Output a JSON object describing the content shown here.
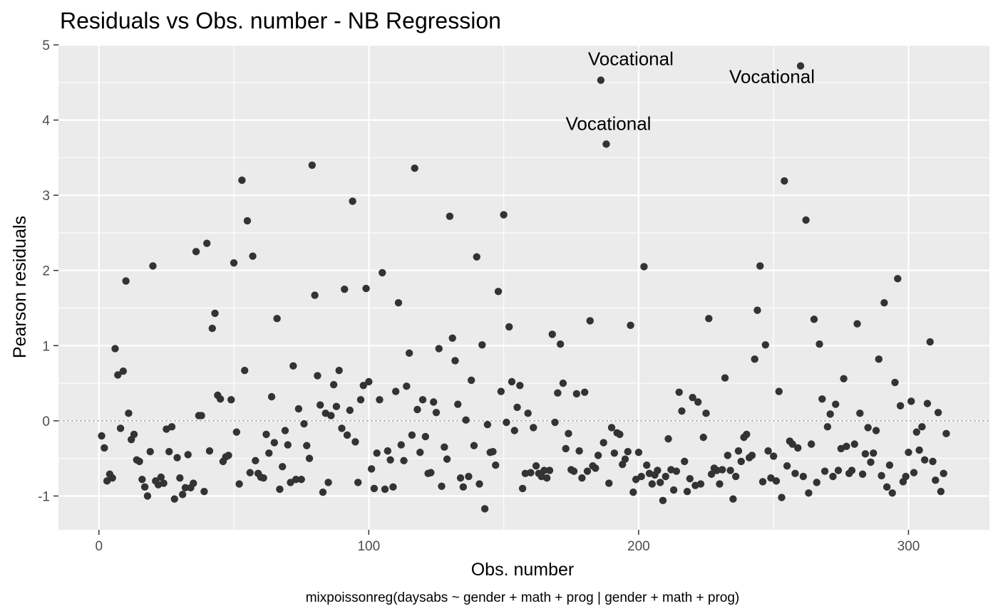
{
  "chart_data": {
    "type": "scatter",
    "title": "Residuals vs Obs. number - NB Regression",
    "xlabel": "Obs. number",
    "ylabel": "Pearson residuals",
    "caption": "mixpoissonreg(daysabs ~ gender + math + prog | gender + math + prog)",
    "xlim": [
      -15,
      330
    ],
    "ylim": [
      -1.45,
      5
    ],
    "x_ticks": [
      0,
      100,
      200,
      300
    ],
    "y_ticks": [
      -1,
      0,
      1,
      2,
      3,
      4,
      5
    ],
    "x_tick_labels": [
      "0",
      "100",
      "200",
      "300"
    ],
    "y_tick_labels": [
      "-1",
      "0",
      "1",
      "2",
      "3",
      "4",
      "5"
    ],
    "grid": true,
    "reference_line": 0,
    "colors": {
      "panel": "#EBEBEB",
      "grid": "#FFFFFF",
      "point": "#333333",
      "text": "#000000",
      "axis_text": "#4D4D4D"
    },
    "annotations": [
      {
        "x": 186,
        "y": 4.53,
        "label": "Vocational"
      },
      {
        "x": 260,
        "y": 4.72,
        "label": "Vocational"
      },
      {
        "x": 188,
        "y": 3.68,
        "label": "Vocational"
      }
    ],
    "points": [
      [
        1,
        -0.2
      ],
      [
        2,
        -0.36
      ],
      [
        3,
        -0.8
      ],
      [
        4,
        -0.71
      ],
      [
        5,
        -0.76
      ],
      [
        6,
        0.96
      ],
      [
        7,
        0.61
      ],
      [
        8,
        -0.1
      ],
      [
        9,
        0.66
      ],
      [
        10,
        1.86
      ],
      [
        11,
        0.1
      ],
      [
        12,
        -0.25
      ],
      [
        13,
        -0.18
      ],
      [
        14,
        -0.52
      ],
      [
        15,
        -0.54
      ],
      [
        16,
        -0.78
      ],
      [
        17,
        -0.88
      ],
      [
        18,
        -1.0
      ],
      [
        19,
        -0.41
      ],
      [
        20,
        2.06
      ],
      [
        21,
        -0.8
      ],
      [
        22,
        -0.85
      ],
      [
        23,
        -0.75
      ],
      [
        24,
        -0.83
      ],
      [
        25,
        -0.11
      ],
      [
        26,
        -0.41
      ],
      [
        27,
        -0.08
      ],
      [
        28,
        -1.04
      ],
      [
        29,
        -0.49
      ],
      [
        30,
        -0.76
      ],
      [
        31,
        -0.98
      ],
      [
        32,
        -0.89
      ],
      [
        33,
        -0.45
      ],
      [
        34,
        -0.89
      ],
      [
        35,
        -0.83
      ],
      [
        36,
        2.25
      ],
      [
        37,
        0.07
      ],
      [
        38,
        0.07
      ],
      [
        39,
        -0.94
      ],
      [
        40,
        2.36
      ],
      [
        41,
        -0.4
      ],
      [
        42,
        1.23
      ],
      [
        43,
        1.43
      ],
      [
        44,
        0.34
      ],
      [
        45,
        0.29
      ],
      [
        46,
        -0.54
      ],
      [
        47,
        -0.48
      ],
      [
        48,
        -0.46
      ],
      [
        49,
        0.28
      ],
      [
        50,
        2.1
      ],
      [
        51,
        -0.15
      ],
      [
        52,
        -0.84
      ],
      [
        53,
        3.2
      ],
      [
        54,
        0.67
      ],
      [
        55,
        2.66
      ],
      [
        56,
        -0.69
      ],
      [
        57,
        2.19
      ],
      [
        58,
        -0.53
      ],
      [
        59,
        -0.7
      ],
      [
        60,
        -0.75
      ],
      [
        61,
        -0.76
      ],
      [
        62,
        -0.18
      ],
      [
        63,
        -0.43
      ],
      [
        64,
        0.32
      ],
      [
        65,
        -0.29
      ],
      [
        66,
        1.36
      ],
      [
        67,
        -0.91
      ],
      [
        68,
        -0.61
      ],
      [
        69,
        -0.13
      ],
      [
        70,
        -0.32
      ],
      [
        71,
        -0.82
      ],
      [
        72,
        0.73
      ],
      [
        73,
        -0.78
      ],
      [
        74,
        0.16
      ],
      [
        75,
        -0.78
      ],
      [
        76,
        -0.04
      ],
      [
        77,
        -0.33
      ],
      [
        78,
        -0.5
      ],
      [
        79,
        3.4
      ],
      [
        80,
        1.67
      ],
      [
        81,
        0.6
      ],
      [
        82,
        0.21
      ],
      [
        83,
        -0.95
      ],
      [
        84,
        0.1
      ],
      [
        85,
        -0.82
      ],
      [
        86,
        0.07
      ],
      [
        87,
        0.48
      ],
      [
        88,
        0.19
      ],
      [
        89,
        0.67
      ],
      [
        90,
        -0.1
      ],
      [
        91,
        1.75
      ],
      [
        92,
        -0.19
      ],
      [
        93,
        0.14
      ],
      [
        94,
        2.92
      ],
      [
        95,
        -0.28
      ],
      [
        96,
        -0.82
      ],
      [
        97,
        0.28
      ],
      [
        98,
        0.47
      ],
      [
        99,
        1.76
      ],
      [
        100,
        0.52
      ],
      [
        101,
        -0.64
      ],
      [
        102,
        -0.9
      ],
      [
        103,
        -0.43
      ],
      [
        104,
        0.28
      ],
      [
        105,
        1.97
      ],
      [
        106,
        -0.91
      ],
      [
        107,
        -0.4
      ],
      [
        108,
        -0.52
      ],
      [
        109,
        -0.88
      ],
      [
        110,
        0.39
      ],
      [
        111,
        1.57
      ],
      [
        112,
        -0.32
      ],
      [
        113,
        -0.53
      ],
      [
        114,
        0.46
      ],
      [
        115,
        0.9
      ],
      [
        116,
        -0.19
      ],
      [
        117,
        3.36
      ],
      [
        118,
        0.15
      ],
      [
        119,
        -0.42
      ],
      [
        120,
        0.28
      ],
      [
        121,
        -0.21
      ],
      [
        122,
        -0.7
      ],
      [
        123,
        -0.69
      ],
      [
        124,
        0.25
      ],
      [
        125,
        0.11
      ],
      [
        126,
        0.96
      ],
      [
        127,
        -0.87
      ],
      [
        128,
        -0.35
      ],
      [
        129,
        -0.51
      ],
      [
        130,
        2.72
      ],
      [
        131,
        1.1
      ],
      [
        132,
        0.8
      ],
      [
        133,
        0.22
      ],
      [
        134,
        -0.76
      ],
      [
        135,
        -0.88
      ],
      [
        136,
        0.01
      ],
      [
        137,
        -0.74
      ],
      [
        138,
        0.54
      ],
      [
        139,
        -0.33
      ],
      [
        140,
        2.18
      ],
      [
        141,
        -0.84
      ],
      [
        142,
        1.01
      ],
      [
        143,
        -1.17
      ],
      [
        144,
        -0.05
      ],
      [
        145,
        -0.42
      ],
      [
        146,
        -0.41
      ],
      [
        147,
        -0.59
      ],
      [
        148,
        1.72
      ],
      [
        149,
        0.39
      ],
      [
        150,
        2.74
      ],
      [
        151,
        -0.02
      ],
      [
        152,
        1.25
      ],
      [
        153,
        0.52
      ],
      [
        154,
        -0.13
      ],
      [
        155,
        0.18
      ],
      [
        156,
        0.47
      ],
      [
        157,
        -0.9
      ],
      [
        158,
        -0.7
      ],
      [
        159,
        0.1
      ],
      [
        160,
        -0.69
      ],
      [
        161,
        -0.09
      ],
      [
        162,
        -0.6
      ],
      [
        163,
        -0.7
      ],
      [
        164,
        -0.74
      ],
      [
        165,
        -0.66
      ],
      [
        166,
        -0.76
      ],
      [
        167,
        -0.66
      ],
      [
        168,
        1.15
      ],
      [
        169,
        -0.02
      ],
      [
        170,
        0.37
      ],
      [
        171,
        1.02
      ],
      [
        172,
        0.5
      ],
      [
        173,
        -0.37
      ],
      [
        174,
        -0.17
      ],
      [
        175,
        -0.65
      ],
      [
        176,
        -0.67
      ],
      [
        177,
        0.36
      ],
      [
        178,
        -0.4
      ],
      [
        179,
        -0.76
      ],
      [
        180,
        0.38
      ],
      [
        181,
        -0.67
      ],
      [
        182,
        1.33
      ],
      [
        183,
        -0.6
      ],
      [
        184,
        -0.63
      ],
      [
        185,
        -0.46
      ],
      [
        186,
        4.53
      ],
      [
        187,
        -0.29
      ],
      [
        188,
        3.68
      ],
      [
        189,
        -0.83
      ],
      [
        190,
        -0.09
      ],
      [
        191,
        -0.43
      ],
      [
        192,
        -0.16
      ],
      [
        193,
        -0.18
      ],
      [
        194,
        -0.58
      ],
      [
        195,
        -0.51
      ],
      [
        196,
        -0.41
      ],
      [
        197,
        1.27
      ],
      [
        198,
        -0.95
      ],
      [
        199,
        -0.78
      ],
      [
        200,
        -0.42
      ],
      [
        201,
        -0.74
      ],
      [
        202,
        2.05
      ],
      [
        203,
        -0.59
      ],
      [
        204,
        -0.7
      ],
      [
        205,
        -0.84
      ],
      [
        206,
        -0.72
      ],
      [
        207,
        -0.66
      ],
      [
        208,
        -0.82
      ],
      [
        209,
        -1.06
      ],
      [
        210,
        -0.74
      ],
      [
        211,
        -0.24
      ],
      [
        212,
        -0.65
      ],
      [
        213,
        -0.92
      ],
      [
        214,
        -0.67
      ],
      [
        215,
        0.38
      ],
      [
        216,
        0.13
      ],
      [
        217,
        -0.54
      ],
      [
        218,
        -0.94
      ],
      [
        219,
        -0.77
      ],
      [
        220,
        0.31
      ],
      [
        221,
        -0.86
      ],
      [
        222,
        0.25
      ],
      [
        223,
        -0.84
      ],
      [
        224,
        -0.22
      ],
      [
        225,
        0.1
      ],
      [
        226,
        1.36
      ],
      [
        227,
        -0.71
      ],
      [
        228,
        -0.63
      ],
      [
        229,
        -0.66
      ],
      [
        230,
        -0.84
      ],
      [
        231,
        -0.65
      ],
      [
        232,
        0.57
      ],
      [
        233,
        -0.46
      ],
      [
        234,
        -0.66
      ],
      [
        235,
        -1.04
      ],
      [
        236,
        -0.74
      ],
      [
        237,
        -0.4
      ],
      [
        238,
        -0.54
      ],
      [
        239,
        -0.22
      ],
      [
        240,
        -0.18
      ],
      [
        241,
        -0.49
      ],
      [
        242,
        -0.46
      ],
      [
        243,
        0.82
      ],
      [
        244,
        1.47
      ],
      [
        245,
        2.06
      ],
      [
        246,
        -0.81
      ],
      [
        247,
        1.01
      ],
      [
        248,
        -0.4
      ],
      [
        249,
        -0.76
      ],
      [
        250,
        -0.47
      ],
      [
        251,
        -0.8
      ],
      [
        252,
        0.39
      ],
      [
        253,
        -1.02
      ],
      [
        254,
        3.19
      ],
      [
        255,
        -0.6
      ],
      [
        256,
        -0.27
      ],
      [
        257,
        -0.31
      ],
      [
        258,
        -0.7
      ],
      [
        259,
        -0.36
      ],
      [
        260,
        4.72
      ],
      [
        261,
        -0.74
      ],
      [
        262,
        2.67
      ],
      [
        263,
        -0.96
      ],
      [
        264,
        -0.31
      ],
      [
        265,
        1.35
      ],
      [
        266,
        -0.82
      ],
      [
        267,
        1.02
      ],
      [
        268,
        0.29
      ],
      [
        269,
        -0.67
      ],
      [
        270,
        -0.08
      ],
      [
        271,
        0.09
      ],
      [
        272,
        -0.74
      ],
      [
        273,
        0.22
      ],
      [
        274,
        -0.66
      ],
      [
        275,
        -0.37
      ],
      [
        276,
        0.56
      ],
      [
        277,
        -0.34
      ],
      [
        278,
        -0.7
      ],
      [
        279,
        -0.66
      ],
      [
        280,
        -0.31
      ],
      [
        281,
        1.29
      ],
      [
        282,
        0.1
      ],
      [
        283,
        -0.71
      ],
      [
        284,
        -0.44
      ],
      [
        285,
        -0.09
      ],
      [
        286,
        -0.55
      ],
      [
        287,
        -0.43
      ],
      [
        288,
        -0.13
      ],
      [
        289,
        0.82
      ],
      [
        290,
        -0.73
      ],
      [
        291,
        1.57
      ],
      [
        292,
        -0.88
      ],
      [
        293,
        -0.59
      ],
      [
        294,
        -0.96
      ],
      [
        295,
        0.51
      ],
      [
        296,
        1.89
      ],
      [
        297,
        0.2
      ],
      [
        298,
        -0.81
      ],
      [
        299,
        -0.74
      ],
      [
        300,
        -0.42
      ],
      [
        301,
        0.26
      ],
      [
        302,
        -0.69
      ],
      [
        303,
        -0.15
      ],
      [
        304,
        -0.39
      ],
      [
        305,
        -0.08
      ],
      [
        306,
        -0.52
      ],
      [
        307,
        0.23
      ],
      [
        308,
        1.05
      ],
      [
        309,
        -0.54
      ],
      [
        310,
        -0.79
      ],
      [
        311,
        0.11
      ],
      [
        312,
        -0.94
      ],
      [
        313,
        -0.7
      ],
      [
        314,
        -0.17
      ]
    ]
  }
}
